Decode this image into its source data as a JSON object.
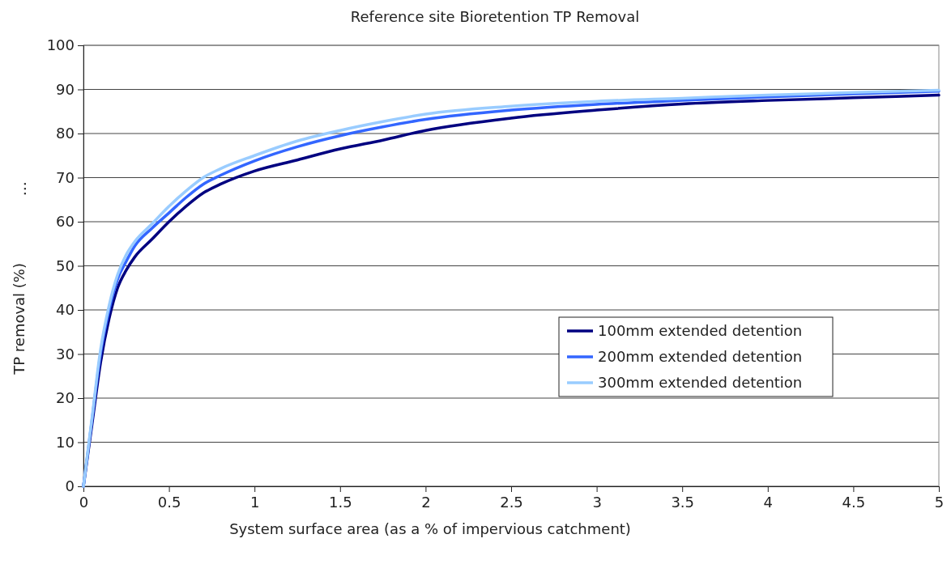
{
  "chart_data": {
    "type": "line",
    "title": "Reference site Bioretention TP Removal",
    "xlabel": "System surface area (as a % of impervious catchment)",
    "ylabel": "TP removal (%)",
    "annotations": [
      "…"
    ],
    "x": [
      0,
      0.05,
      0.1,
      0.15,
      0.2,
      0.25,
      0.3,
      0.4,
      0.5,
      0.6,
      0.7,
      0.8,
      1,
      1.25,
      1.5,
      1.75,
      2,
      2.5,
      3,
      3.5,
      4,
      4.5,
      5
    ],
    "series": [
      {
        "name": "100mm extended detention",
        "color": "#000080",
        "values": [
          0,
          14,
          28,
          38,
          45,
          49,
          52,
          56,
          60,
          63.5,
          66.5,
          68.5,
          71.5,
          74,
          76.5,
          78.5,
          80.7,
          83.5,
          85.3,
          86.7,
          87.5,
          88.1,
          88.7
        ]
      },
      {
        "name": "200mm extended detention",
        "color": "#3366ff",
        "values": [
          0,
          15,
          30,
          40,
          47,
          51,
          54.5,
          58.5,
          62,
          65.5,
          68.5,
          70.5,
          73.8,
          77,
          79.5,
          81.5,
          83.2,
          85.3,
          86.6,
          87.5,
          88.3,
          89,
          89.6
        ]
      },
      {
        "name": "300mm extended detention",
        "color": "#99ccff",
        "values": [
          0,
          15.5,
          31,
          41,
          48,
          52.5,
          55.5,
          59.5,
          63.5,
          67,
          70,
          72,
          75,
          78.3,
          80.7,
          82.7,
          84.4,
          86.2,
          87.3,
          88,
          88.7,
          89.3,
          89.8
        ]
      }
    ],
    "xlim": [
      0,
      5
    ],
    "xticks": [
      0,
      0.5,
      1,
      1.5,
      2,
      2.5,
      3,
      3.5,
      4,
      4.5,
      5
    ],
    "ylim": [
      0,
      100
    ],
    "yticks": [
      0,
      10,
      20,
      30,
      40,
      50,
      60,
      70,
      80,
      90,
      100
    ],
    "grid": "y",
    "legend": "right",
    "marker": "none",
    "line_style": "solid"
  }
}
